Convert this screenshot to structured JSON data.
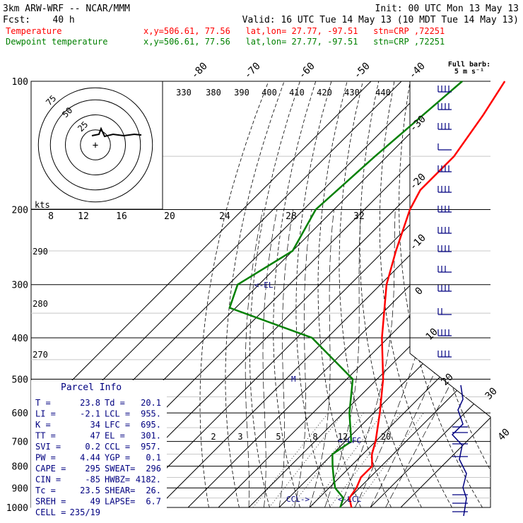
{
  "header": {
    "line1_left": "3km ARW-WRF -- NCAR/MMM",
    "line1_right": "Init: 00 UTC Mon 13 May 13",
    "line2_left": "Fcst:    40 h",
    "line2_right": "Valid: 16 UTC Tue 14 May 13 (10 MDT Tue 14 May 13)",
    "temp_label": "Temperature",
    "temp_info": "x,y=506.61, 77.56   lat,lon= 27.77, -97.51   stn=CRP ,72251",
    "dew_label": "Dewpoint temperature",
    "dew_info": "x,y=506.61, 77.56   lat,lon= 27.77, -97.51   stn=CRP ,72251",
    "barb_key_line1": "Full barb:",
    "barb_key_line2": "5 m s⁻¹"
  },
  "colors": {
    "temperature": "#ff0000",
    "dewpoint": "#008000",
    "text_blue": "#000080",
    "wind": "#000080"
  },
  "chart_data": {
    "type": "skew-t",
    "pressure_levels": [
      "100",
      "200",
      "300",
      "400",
      "500",
      "600",
      "700",
      "800",
      "900",
      "1000"
    ],
    "isotherm_labels": [
      {
        "value": "-80"
      },
      {
        "value": "-70"
      },
      {
        "value": "-60"
      },
      {
        "value": "-50"
      },
      {
        "value": "-40"
      },
      {
        "value": "-30"
      },
      {
        "value": "-20"
      },
      {
        "value": "-10"
      },
      {
        "value": "0"
      },
      {
        "value": "10"
      },
      {
        "value": "20"
      },
      {
        "value": "30"
      },
      {
        "value": "40"
      }
    ],
    "theta_labels": [
      "330",
      "380",
      "390",
      "400",
      "410",
      "420",
      "430",
      "440"
    ],
    "mixing_ratio_labels": [
      "2",
      "3",
      "5",
      "8",
      "12",
      "20"
    ],
    "hodo_speed_labels": [
      "8",
      "12",
      "16",
      "20",
      "24",
      "28",
      "32"
    ],
    "hodo_ring_labels": [
      "75",
      "50",
      "25"
    ],
    "hodo_unit": "kts",
    "height_labels": [
      "290",
      "280",
      "270"
    ],
    "annotations": [
      {
        "text": "<-EL"
      },
      {
        "text": "<-LFC"
      },
      {
        "text": "<-LCL"
      },
      {
        "text": "CCL->"
      },
      {
        "text": "M"
      }
    ],
    "temperature_profile": [
      [
        100,
        -66
      ],
      [
        120,
        -62
      ],
      [
        150,
        -58
      ],
      [
        180,
        -58
      ],
      [
        200,
        -55
      ],
      [
        250,
        -46
      ],
      [
        300,
        -38
      ],
      [
        400,
        -22
      ],
      [
        500,
        -8
      ],
      [
        600,
        2
      ],
      [
        700,
        10
      ],
      [
        750,
        13
      ],
      [
        800,
        17
      ],
      [
        850,
        17
      ],
      [
        900,
        19
      ],
      [
        950,
        20
      ],
      [
        1000,
        23.8
      ]
    ],
    "dewpoint_profile": [
      [
        100,
        -80
      ],
      [
        150,
        -84
      ],
      [
        200,
        -86
      ],
      [
        250,
        -80
      ],
      [
        300,
        -87
      ],
      [
        340,
        -82
      ],
      [
        400,
        -45
      ],
      [
        500,
        -18
      ],
      [
        600,
        -8
      ],
      [
        700,
        2
      ],
      [
        750,
        0
      ],
      [
        800,
        4
      ],
      [
        850,
        8
      ],
      [
        900,
        12
      ],
      [
        950,
        18
      ],
      [
        1000,
        20.1
      ]
    ]
  },
  "parcel_info": {
    "title": "Parcel Info",
    "rows": [
      {
        "l1": "T   =",
        "v1": "23.8",
        "l2": "Td =",
        "v2": "20.1"
      },
      {
        "l1": "LI  =",
        "v1": "-2.1",
        "l2": "LCL =",
        "v2": "955."
      },
      {
        "l1": "K   =",
        "v1": "34",
        "l2": "LFC =",
        "v2": "695."
      },
      {
        "l1": "TT  =",
        "v1": "47",
        "l2": "EL  =",
        "v2": "301."
      },
      {
        "l1": "SVI =",
        "v1": "0.2",
        "l2": "CCL =",
        "v2": "957."
      },
      {
        "l1": "PW  =",
        "v1": "4.44",
        "l2": "YGP =",
        "v2": "0.1"
      },
      {
        "l1": "CAPE =",
        "v1": "295",
        "l2": "SWEAT=",
        "v2": "296"
      },
      {
        "l1": "CIN =",
        "v1": "-85",
        "l2": "HWBZ=",
        "v2": "4182."
      },
      {
        "l1": "Tc  =",
        "v1": "23.5",
        "l2": "SHEAR=",
        "v2": "26."
      },
      {
        "l1": "SREH =",
        "v1": "49",
        "l2": "LAPSE=",
        "v2": "6.7"
      },
      {
        "l1": "CELL =",
        "v1": "235/19",
        "l2": "",
        "v2": ""
      }
    ]
  }
}
